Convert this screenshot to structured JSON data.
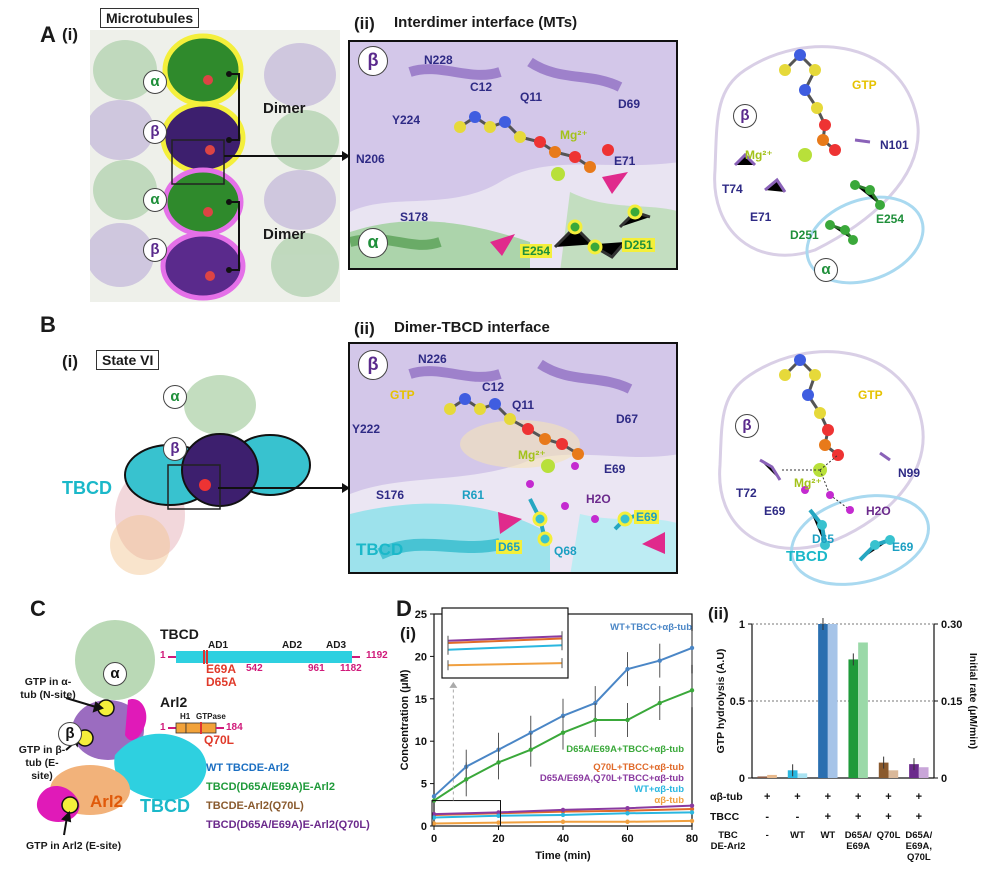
{
  "panelA": {
    "letter": "A",
    "sub_i": "(i)",
    "title_i": "Microtubules",
    "sub_ii": "(ii)",
    "title_ii": "Interdimer interface (MTs)",
    "alpha": "α",
    "beta": "β",
    "dimer": "Dimer",
    "residues": {
      "n228": "N228",
      "c12": "C12",
      "q11": "Q11",
      "d69": "D69",
      "y224": "Y224",
      "n206": "N206",
      "mg": "Mg²⁺",
      "e71": "E71",
      "s178": "S178",
      "e254": "E254",
      "d251": "D251"
    },
    "schematic": {
      "gtp": "GTP",
      "mg": "Mg²⁺",
      "n101": "N101",
      "t74": "T74",
      "e71": "E71",
      "e254": "E254",
      "d251": "D251",
      "beta": "β",
      "alpha": "α"
    }
  },
  "panelB": {
    "letter": "B",
    "sub_i": "(i)",
    "title_i": "State VI",
    "sub_ii": "(ii)",
    "title_ii": "Dimer-TBCD interface",
    "alpha": "α",
    "beta": "β",
    "tbcd": "TBCD",
    "residues": {
      "n226": "N226",
      "gtp": "GTP",
      "c12": "C12",
      "q11": "Q11",
      "d67": "D67",
      "y222": "Y222",
      "mg": "Mg²⁺",
      "e69": "E69",
      "s176": "S176",
      "r61": "R61",
      "h2o": "H2O",
      "e69b": "E69",
      "d65": "D65",
      "q68": "Q68",
      "tbcd": "TBCD"
    },
    "schematic": {
      "gtp": "GTP",
      "beta": "β",
      "t72": "T72",
      "n99": "N99",
      "mg": "Mg²⁺",
      "e69": "E69",
      "h2o": "H2O",
      "d65": "D65",
      "e69b": "E69",
      "tbcd": "TBCD"
    }
  },
  "panelC": {
    "letter": "C",
    "alpha": "α",
    "beta": "β",
    "gtp_alpha": "GTP in α-tub (N-site)",
    "gtp_beta": "GTP in β-tub (E-site)",
    "gtp_arl2": "GTP in Arl2 (E-site)",
    "arl2": "Arl2",
    "tbcd": "TBCD",
    "domain_tbcd": {
      "name": "TBCD",
      "start": "1",
      "ad1": "AD1",
      "ad2": "AD2",
      "ad3": "AD3",
      "n542": "542",
      "n961": "961",
      "n1182": "1182",
      "end": "1192",
      "mut1": "E69A",
      "mut2": "D65A"
    },
    "domain_arl2": {
      "name": "Arl2",
      "start": "1",
      "h1": "H1",
      "gtpase": "GTPase",
      "end": "184",
      "mut": "Q70L"
    },
    "legend": [
      {
        "text": "WT TBCDE-Arl2",
        "color": "#1b6fc2"
      },
      {
        "text": "TBCD(D65A/E69A)E-Arl2",
        "color": "#1f9a3a"
      },
      {
        "text": "TBCDE-Arl2(Q70L)",
        "color": "#8a5a2e"
      },
      {
        "text": "TBCD(D65A/E69A)E-Arl2(Q70L)",
        "color": "#6b2a8c"
      }
    ]
  },
  "panelD": {
    "letter": "D",
    "sub_i": "(i)",
    "sub_ii": "(ii)",
    "colors": {
      "wt": "#4a86c6",
      "d65a": "#3aa83a",
      "q70l": "#e06a2a",
      "triple": "#8a3aa0",
      "wt_alone": "#2ab7e0",
      "ab": "#f0a040"
    }
  },
  "chart_data": [
    {
      "type": "line",
      "xlabel": "Time (min)",
      "ylabel": "Concentration (μM)",
      "xlim": [
        0,
        80
      ],
      "ylim": [
        0,
        25
      ],
      "xticks": [
        0,
        20,
        40,
        60,
        80
      ],
      "yticks": [
        0,
        5,
        10,
        15,
        20,
        25
      ],
      "series": [
        {
          "name": "WT+TBCC+αβ-tub",
          "color": "#4a86c6",
          "x": [
            0,
            10,
            20,
            30,
            40,
            50,
            60,
            70,
            80
          ],
          "y": [
            3.5,
            7.0,
            9.0,
            11.0,
            13.0,
            14.5,
            18.5,
            19.5,
            21.0
          ]
        },
        {
          "name": "D65A/E69A+TBCC+αβ-tub",
          "color": "#3aa83a",
          "x": [
            0,
            10,
            20,
            30,
            40,
            50,
            60,
            70,
            80
          ],
          "y": [
            3.0,
            5.5,
            7.5,
            9.0,
            11.0,
            12.5,
            12.5,
            14.5,
            16.0
          ]
        },
        {
          "name": "Q70L+TBCC+αβ-tub",
          "color": "#e06a2a",
          "x": [
            0,
            20,
            40,
            60,
            80
          ],
          "y": [
            1.3,
            1.5,
            1.7,
            1.8,
            2.0
          ]
        },
        {
          "name": "D65A/E69A,Q70L+TBCC+αβ-tub",
          "color": "#8a3aa0",
          "x": [
            0,
            20,
            40,
            60,
            80
          ],
          "y": [
            1.4,
            1.6,
            1.9,
            2.1,
            2.4
          ]
        },
        {
          "name": "WT+αβ-tub",
          "color": "#2ab7e0",
          "x": [
            0,
            20,
            40,
            60,
            80
          ],
          "y": [
            1.0,
            1.2,
            1.3,
            1.5,
            1.6
          ]
        },
        {
          "name": "αβ-tub",
          "color": "#f0a040",
          "x": [
            0,
            20,
            40,
            60,
            80
          ],
          "y": [
            0.3,
            0.4,
            0.5,
            0.5,
            0.6
          ]
        }
      ]
    },
    {
      "type": "bar",
      "ylabel": "GTP hydrolysis (A.U)",
      "ylabel_right": "Initial rate (μM/min)",
      "ylim": [
        0,
        1
      ],
      "yticks": [
        0,
        0.5,
        1
      ],
      "yticks_right": [
        0,
        0.15,
        0.3
      ],
      "categories": [
        "-",
        "WT",
        "WT",
        "D65A/E69A",
        "Q70L",
        "D65A/E69A,Q70L"
      ],
      "row_labels": {
        "ab": "αβ-tub",
        "tbcc": "TBCC",
        "tbc": "TBC DE-Arl2"
      },
      "row_ab": [
        "+",
        "+",
        "+",
        "+",
        "+",
        "+"
      ],
      "row_tbcc": [
        "-",
        "-",
        "+",
        "+",
        "+",
        "+"
      ],
      "series": [
        {
          "name": "GTP hydrolysis",
          "values": [
            0.01,
            0.05,
            1.0,
            0.77,
            0.1,
            0.09
          ],
          "colors": [
            "#8b5a44",
            "#2ab7e0",
            "#2a6fb0",
            "#1f9a3a",
            "#8a5a2e",
            "#6b2a8c"
          ]
        },
        {
          "name": "Initial rate",
          "values": [
            0.02,
            0.03,
            1.0,
            0.88,
            0.05,
            0.07
          ],
          "colors": [
            "#e8b98c",
            "#a9e3f2",
            "#a6c4e8",
            "#9ad9a8",
            "#d9b89a",
            "#c9a6d9"
          ]
        }
      ]
    }
  ]
}
